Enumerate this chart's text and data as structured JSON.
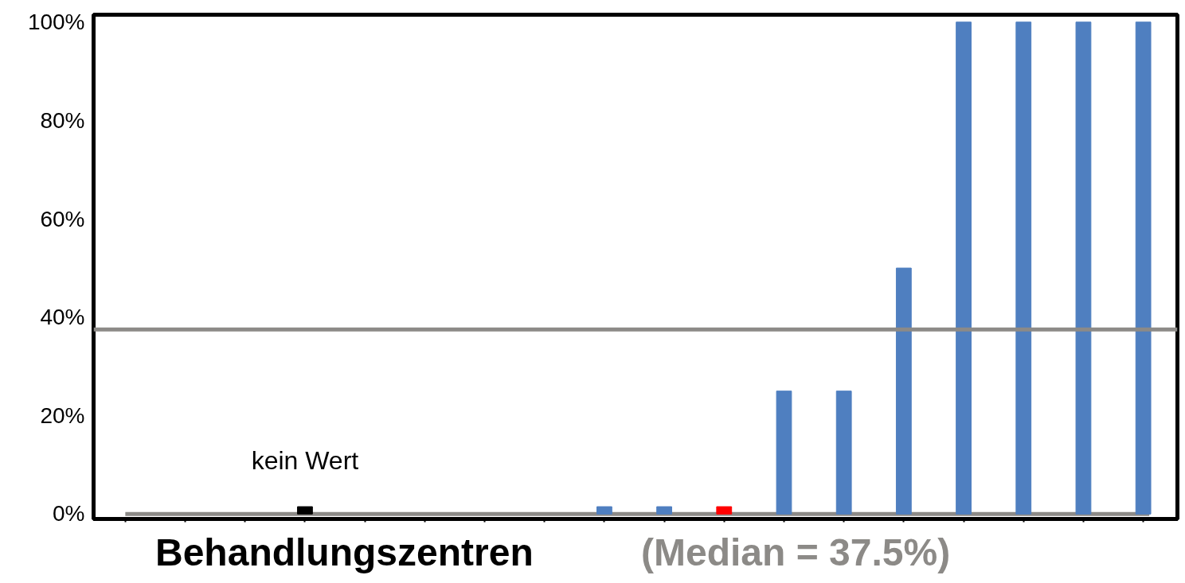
{
  "chart_data": {
    "type": "bar",
    "xlabel": "Behandlungszentren",
    "categories": [
      null,
      null,
      null,
      null,
      null,
      null,
      null,
      null,
      null,
      null,
      null,
      null,
      null,
      null,
      null,
      null,
      null,
      null
    ],
    "values": [
      null,
      null,
      null,
      1.5,
      null,
      null,
      null,
      null,
      1.5,
      1.5,
      1.5,
      25,
      25,
      50,
      100,
      100,
      100,
      100
    ],
    "colors": [
      "#4f7fc0",
      "#4f7fc0",
      "#4f7fc0",
      "#000000",
      "#4f7fc0",
      "#4f7fc0",
      "#4f7fc0",
      "#4f7fc0",
      "#4f7fc0",
      "#4f7fc0",
      "#ff0000",
      "#4f7fc0",
      "#4f7fc0",
      "#4f7fc0",
      "#4f7fc0",
      "#4f7fc0",
      "#4f7fc0",
      "#4f7fc0"
    ],
    "ylim": [
      -1,
      101.5
    ],
    "yticks": [
      {
        "value": 0,
        "label": "0%"
      },
      {
        "value": 20,
        "label": "20%"
      },
      {
        "value": 40,
        "label": "40%"
      },
      {
        "value": 60,
        "label": "60%"
      },
      {
        "value": 80,
        "label": "80%"
      },
      {
        "value": 100,
        "label": "100%"
      }
    ],
    "ref_lines": [
      {
        "axis": "y",
        "value": 37.5,
        "label": "(Median = 37.5%)",
        "color": "#8c8a87"
      },
      {
        "axis": "y",
        "value": 0,
        "color": "#8c8a87"
      }
    ],
    "annotations": [
      "kein Wert"
    ],
    "grid": false
  }
}
